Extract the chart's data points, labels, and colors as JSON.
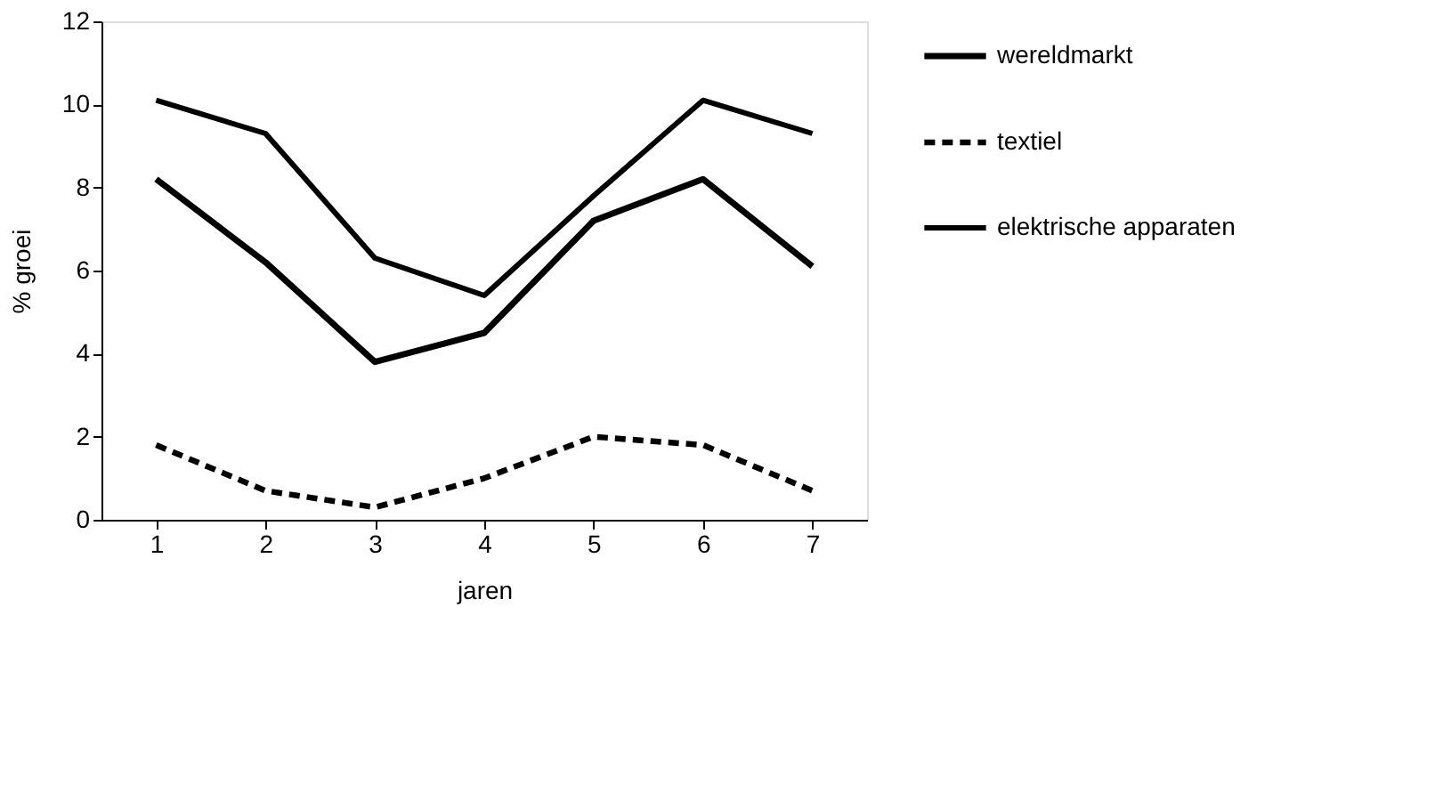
{
  "chart_data": {
    "type": "line",
    "xlabel": "jaren",
    "ylabel": "% groei",
    "categories": [
      "1",
      "2",
      "3",
      "4",
      "5",
      "6",
      "7"
    ],
    "ylim": [
      0,
      12
    ],
    "yticks": [
      0,
      2,
      4,
      6,
      8,
      10,
      12
    ],
    "grid": false,
    "legend": "right",
    "marker": "none",
    "series": [
      {
        "name": "wereldmarkt",
        "color": "#000000",
        "line_style": "solid",
        "values": [
          8.2,
          6.2,
          3.8,
          4.5,
          7.2,
          8.2,
          6.1
        ]
      },
      {
        "name": "textiel",
        "color": "#000000",
        "line_style": "dashed",
        "values": [
          1.8,
          0.7,
          0.3,
          1.0,
          2.0,
          1.8,
          0.7
        ]
      },
      {
        "name": "elektrische apparaten",
        "color": "#000000",
        "line_style": "solid",
        "values": [
          10.1,
          9.3,
          6.3,
          5.4,
          7.8,
          10.1,
          9.3
        ]
      }
    ]
  }
}
